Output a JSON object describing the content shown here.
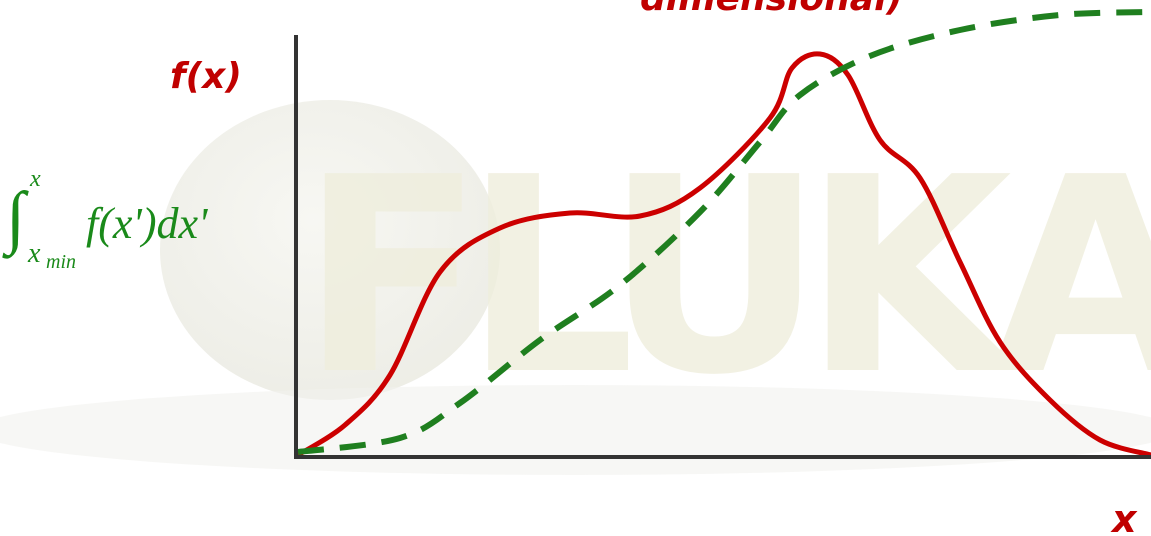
{
  "header": {
    "title_fragment": "dimensional)"
  },
  "watermark": {
    "text": "FLUKA"
  },
  "axis_labels": {
    "y": "f(x)",
    "x": "x"
  },
  "integral_label": {
    "sign": "∫",
    "upper": "x",
    "lower": "x",
    "lower_sub": "min",
    "integrand": "f(x')dx'"
  }
}
